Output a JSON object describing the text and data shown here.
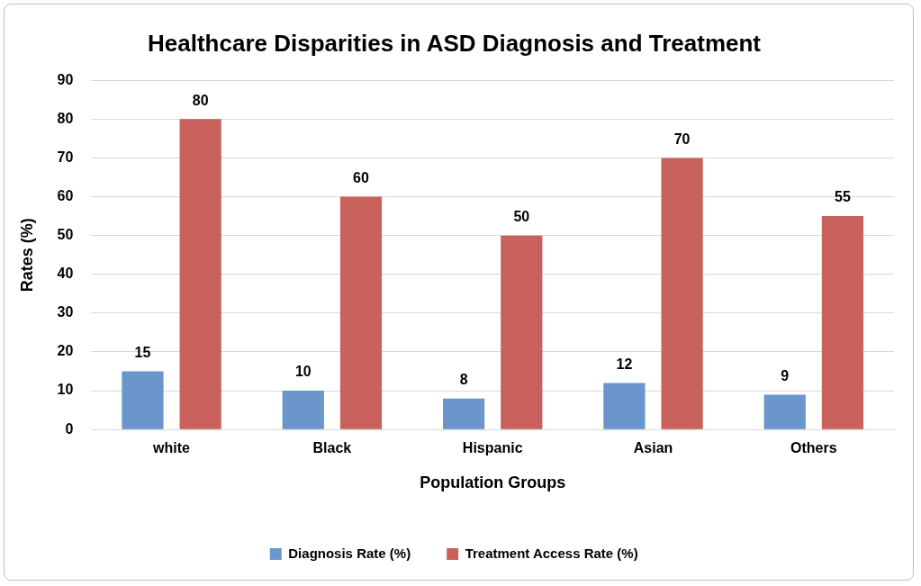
{
  "chart_data": {
    "type": "bar",
    "title": "Healthcare Disparities in ASD Diagnosis and Treatment",
    "xlabel": "Population Groups",
    "ylabel": "Rates (%)",
    "categories": [
      "white",
      "Black",
      "Hispanic",
      "Asian",
      "Others"
    ],
    "series": [
      {
        "name": "Diagnosis Rate (%)",
        "color": "#6a96cc",
        "values": [
          15,
          10,
          8,
          12,
          9
        ]
      },
      {
        "name": "Treatment Access Rate (%)",
        "color": "#c9625c",
        "values": [
          80,
          60,
          50,
          70,
          55
        ]
      }
    ],
    "ylim": [
      0,
      90
    ],
    "yticks": [
      0,
      10,
      20,
      30,
      40,
      50,
      60,
      70,
      80,
      90
    ],
    "grid": "y",
    "legend": "bottom",
    "data_labels": true
  }
}
